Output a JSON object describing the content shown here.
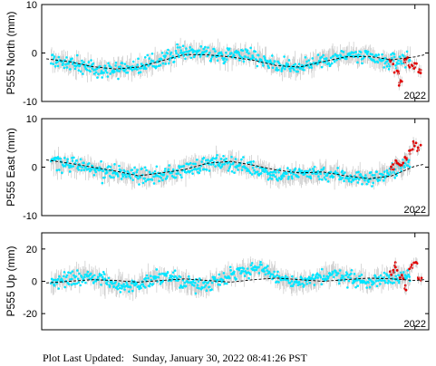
{
  "footer": {
    "label": "Plot Last Updated:",
    "value": "Sunday, January 30, 2022 08:41:26 PST"
  },
  "colors": {
    "observations": "#00e5ff",
    "recent_observations": "#e00000",
    "error_bars": "#c8c8c8",
    "model_fit": "#000000"
  },
  "chart_data": [
    {
      "type": "scatter",
      "title": "",
      "ylabel": "P555 North (mm)",
      "xlabel": "",
      "x_tick_labels": [
        "2022"
      ],
      "y_ticks": [
        -10,
        0,
        10
      ],
      "ylim": [
        -10,
        10
      ],
      "grid": false,
      "series": [
        {
          "kind": "daily_positions",
          "x": [
            2018.1,
            2018.3,
            2018.5,
            2018.7,
            2018.9,
            2019.1,
            2019.3,
            2019.5,
            2019.7,
            2019.9,
            2020.1,
            2020.3,
            2020.5,
            2020.7,
            2020.9,
            2021.1,
            2021.3,
            2021.5,
            2021.7,
            2021.9
          ],
          "y": [
            -1.5,
            -2.5,
            -3.0,
            -3.5,
            -3.0,
            -2.5,
            -1.0,
            0.5,
            0.0,
            -0.5,
            0.0,
            -1.0,
            -2.5,
            -3.0,
            -2.0,
            -1.0,
            -0.5,
            -1.0,
            -2.0,
            -1.0
          ]
        },
        {
          "kind": "recent_positions",
          "x": [
            2021.75,
            2021.8,
            2021.85,
            2021.9,
            2021.95,
            2022.0,
            2022.05
          ],
          "y": [
            -2.0,
            -3.5,
            -6.0,
            -1.5,
            -3.0,
            -2.5,
            -4.0
          ]
        },
        {
          "kind": "seasonal_model",
          "x": [
            2018.0,
            2018.25,
            2018.5,
            2018.75,
            2019.0,
            2019.25,
            2019.5,
            2019.75,
            2020.0,
            2020.25,
            2020.5,
            2020.75,
            2021.0,
            2021.25,
            2021.5,
            2021.75,
            2022.0,
            2022.1
          ],
          "y": [
            -1.2,
            -1.8,
            -2.8,
            -3.3,
            -2.9,
            -1.6,
            -0.3,
            -0.4,
            -0.8,
            -1.5,
            -2.6,
            -2.9,
            -1.8,
            -0.8,
            -0.7,
            -1.4,
            -0.8,
            -0.4
          ]
        }
      ]
    },
    {
      "type": "scatter",
      "title": "",
      "ylabel": "P555 East (mm)",
      "xlabel": "",
      "x_tick_labels": [
        "2022"
      ],
      "y_ticks": [
        -10,
        0,
        10
      ],
      "ylim": [
        -10,
        10
      ],
      "grid": false,
      "series": [
        {
          "kind": "daily_positions",
          "x": [
            2018.1,
            2018.3,
            2018.5,
            2018.7,
            2018.9,
            2019.1,
            2019.3,
            2019.5,
            2019.7,
            2019.9,
            2020.1,
            2020.3,
            2020.5,
            2020.7,
            2020.9,
            2021.1,
            2021.3,
            2021.5,
            2021.7,
            2021.9
          ],
          "y": [
            1.0,
            0.5,
            -0.5,
            -1.0,
            -1.5,
            -2.0,
            -1.5,
            -0.5,
            0.5,
            1.0,
            0.5,
            -0.5,
            -1.5,
            -1.5,
            -1.0,
            -1.5,
            -2.0,
            -2.5,
            -1.5,
            0.5
          ]
        },
        {
          "kind": "recent_positions",
          "x": [
            2021.75,
            2021.8,
            2021.85,
            2021.9,
            2021.95,
            2022.0,
            2022.05
          ],
          "y": [
            0.0,
            1.0,
            0.5,
            2.0,
            3.5,
            5.0,
            4.0
          ]
        },
        {
          "kind": "seasonal_model",
          "x": [
            2018.0,
            2018.25,
            2018.5,
            2018.75,
            2019.0,
            2019.25,
            2019.5,
            2019.75,
            2020.0,
            2020.25,
            2020.5,
            2020.75,
            2021.0,
            2021.25,
            2021.5,
            2021.75,
            2022.0,
            2022.1
          ],
          "y": [
            1.5,
            0.8,
            0.0,
            -0.8,
            -1.8,
            -1.2,
            -0.5,
            0.8,
            1.2,
            0.4,
            -0.6,
            -1.2,
            -1.0,
            -1.8,
            -2.4,
            -1.8,
            0.2,
            0.6
          ]
        }
      ]
    },
    {
      "type": "scatter",
      "title": "",
      "ylabel": "P555 Up (mm)",
      "xlabel": "",
      "x_tick_labels": [
        "2022"
      ],
      "y_ticks": [
        -20,
        0,
        20
      ],
      "ylim": [
        -30,
        30
      ],
      "grid": false,
      "series": [
        {
          "kind": "daily_positions",
          "x": [
            2018.1,
            2018.3,
            2018.5,
            2018.7,
            2018.9,
            2019.1,
            2019.3,
            2019.5,
            2019.7,
            2019.9,
            2020.1,
            2020.3,
            2020.5,
            2020.7,
            2020.9,
            2021.1,
            2021.3,
            2021.5,
            2021.7,
            2021.9
          ],
          "y": [
            0.0,
            2.0,
            4.0,
            -2.0,
            -4.0,
            1.0,
            3.0,
            0.0,
            -3.0,
            2.0,
            6.0,
            8.0,
            3.0,
            -2.0,
            1.0,
            5.0,
            2.0,
            -1.0,
            3.0,
            2.0
          ]
        },
        {
          "kind": "recent_positions",
          "x": [
            2021.75,
            2021.8,
            2021.85,
            2021.9,
            2021.95,
            2022.0,
            2022.05
          ],
          "y": [
            6.0,
            10.0,
            3.0,
            -4.0,
            8.0,
            12.0,
            2.0
          ]
        },
        {
          "kind": "seasonal_model",
          "x": [
            2018.0,
            2018.25,
            2018.5,
            2018.75,
            2019.0,
            2019.25,
            2019.5,
            2019.75,
            2020.0,
            2020.25,
            2020.5,
            2020.75,
            2021.0,
            2021.25,
            2021.5,
            2021.75,
            2022.0,
            2022.1
          ],
          "y": [
            -1.0,
            0.0,
            1.0,
            0.5,
            -0.5,
            0.5,
            1.5,
            0.5,
            -0.5,
            1.0,
            2.0,
            1.0,
            0.0,
            1.0,
            2.0,
            1.5,
            0.5,
            1.0
          ]
        }
      ]
    }
  ],
  "x_axis": {
    "xlim": [
      2017.95,
      2022.15
    ],
    "tick_value": 2022
  }
}
